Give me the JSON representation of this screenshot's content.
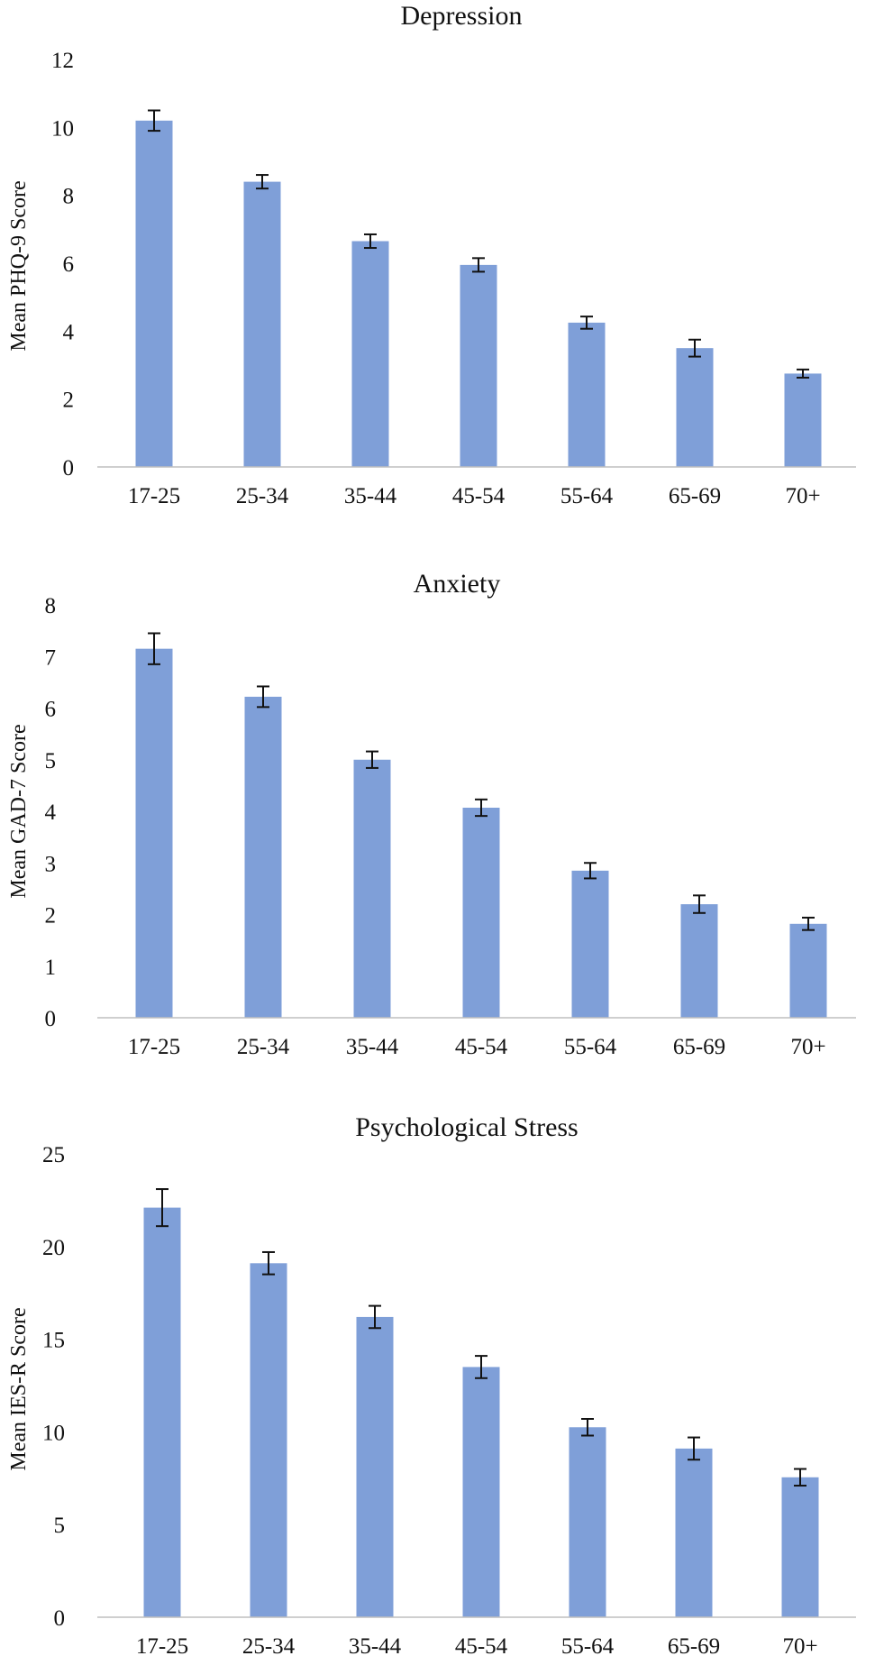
{
  "chart_data": [
    {
      "type": "bar",
      "title": "Depression",
      "ylabel": "Mean PHQ-9 Score",
      "xlabel": "",
      "categories": [
        "17-25",
        "25-34",
        "35-44",
        "45-54",
        "55-64",
        "65-69",
        "70+"
      ],
      "values": [
        10.2,
        8.4,
        6.65,
        5.95,
        4.25,
        3.5,
        2.75
      ],
      "errors": [
        0.3,
        0.2,
        0.2,
        0.2,
        0.18,
        0.25,
        0.12
      ],
      "ylim": [
        0,
        12
      ],
      "yticks": [
        "0",
        "2",
        "4",
        "6",
        "8",
        "10",
        "12"
      ],
      "bar_color": "#7f9fd8",
      "grid": false,
      "legend": "none"
    },
    {
      "type": "bar",
      "title": "Anxiety",
      "ylabel": "Mean GAD-7 Score",
      "xlabel": "",
      "categories": [
        "17-25",
        "25-34",
        "35-44",
        "45-54",
        "55-64",
        "65-69",
        "70+"
      ],
      "values": [
        7.15,
        6.22,
        5.0,
        4.07,
        2.85,
        2.2,
        1.82
      ],
      "errors": [
        0.3,
        0.2,
        0.16,
        0.16,
        0.15,
        0.17,
        0.12
      ],
      "ylim": [
        0,
        8
      ],
      "yticks": [
        "0",
        "1",
        "2",
        "3",
        "4",
        "5",
        "6",
        "7",
        "8"
      ],
      "bar_color": "#7f9fd8",
      "grid": false,
      "legend": "none"
    },
    {
      "type": "bar",
      "title": "Psychological Stress",
      "ylabel": "Mean IES-R Score",
      "xlabel": "",
      "categories": [
        "17-25",
        "25-34",
        "35-44",
        "45-54",
        "55-64",
        "65-69",
        "70+"
      ],
      "values": [
        22.1,
        19.1,
        16.2,
        13.5,
        10.25,
        9.1,
        7.55
      ],
      "errors": [
        1.0,
        0.6,
        0.6,
        0.6,
        0.45,
        0.6,
        0.45
      ],
      "ylim": [
        0,
        25
      ],
      "yticks": [
        "0",
        "5",
        "10",
        "15",
        "20",
        "25"
      ],
      "bar_color": "#7f9fd8",
      "grid": false,
      "legend": "none"
    }
  ]
}
